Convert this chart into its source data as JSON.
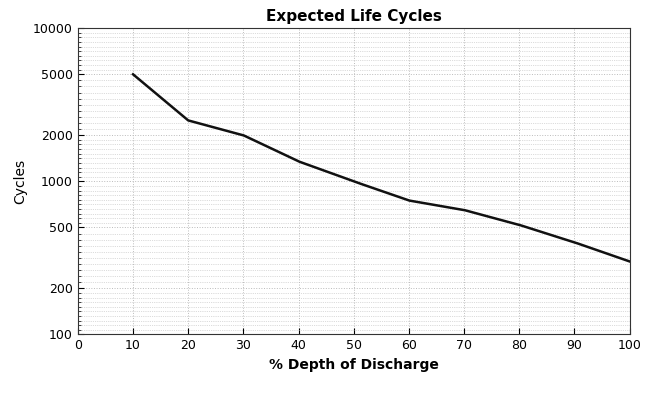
{
  "title": "Expected Life Cycles",
  "xlabel": "% Depth of Discharge",
  "ylabel": "Cycles",
  "x_data": [
    10,
    20,
    30,
    40,
    50,
    60,
    70,
    80,
    90,
    100
  ],
  "y_data": [
    5000,
    2500,
    2000,
    1350,
    1000,
    750,
    650,
    520,
    400,
    300
  ],
  "xlim": [
    0,
    100
  ],
  "ylim": [
    100,
    10000
  ],
  "xticks": [
    0,
    10,
    20,
    30,
    40,
    50,
    60,
    70,
    80,
    90,
    100
  ],
  "yticks": [
    100,
    200,
    500,
    1000,
    2000,
    5000,
    10000
  ],
  "ytick_labels": [
    "100",
    "200",
    "500",
    "1000",
    "2000",
    "5000",
    "10000"
  ],
  "line_color": "#111111",
  "line_width": 1.8,
  "background_color": "#ffffff",
  "grid_color": "#bbbbbb",
  "title_fontsize": 11,
  "label_fontsize": 10,
  "tick_fontsize": 9
}
